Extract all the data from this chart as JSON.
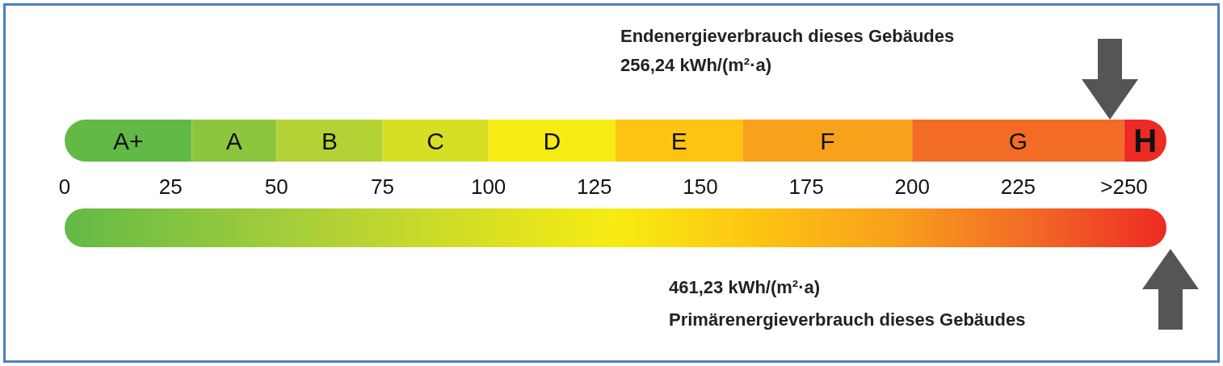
{
  "chart_data": {
    "type": "bar",
    "orientation": "horizontal",
    "stacked": true,
    "legend": false,
    "grid": false,
    "categories": [
      null
    ],
    "series": [
      {
        "name": "A+",
        "color": "#62b946",
        "values": [
          30
        ]
      },
      {
        "name": "A",
        "color": "#8cc63f",
        "values": [
          20
        ]
      },
      {
        "name": "B",
        "color": "#b3d235",
        "values": [
          25
        ]
      },
      {
        "name": "C",
        "color": "#d6df24",
        "values": [
          25
        ]
      },
      {
        "name": "D",
        "color": "#f7ec13",
        "values": [
          30
        ]
      },
      {
        "name": "E",
        "color": "#fdc512",
        "values": [
          30
        ]
      },
      {
        "name": "F",
        "color": "#f8a11b",
        "values": [
          40
        ]
      },
      {
        "name": "G",
        "color": "#f26c26",
        "values": [
          50
        ]
      },
      {
        "name": "H",
        "color": "#ed2a24",
        "values": [
          10
        ]
      }
    ],
    "xlim": [
      0,
      260
    ],
    "xticks": [
      0,
      25,
      50,
      75,
      100,
      125,
      150,
      175,
      200,
      225,
      {
        "value": 250,
        "label": ">250"
      }
    ],
    "annotations": [
      "Endenergieverbrauch dieses Gebäudes",
      "256,24 kWh/(m²·a)",
      "461,23 kWh/(m²·a)",
      "Primärenergieverbrauch dieses Gebäudes"
    ]
  }
}
